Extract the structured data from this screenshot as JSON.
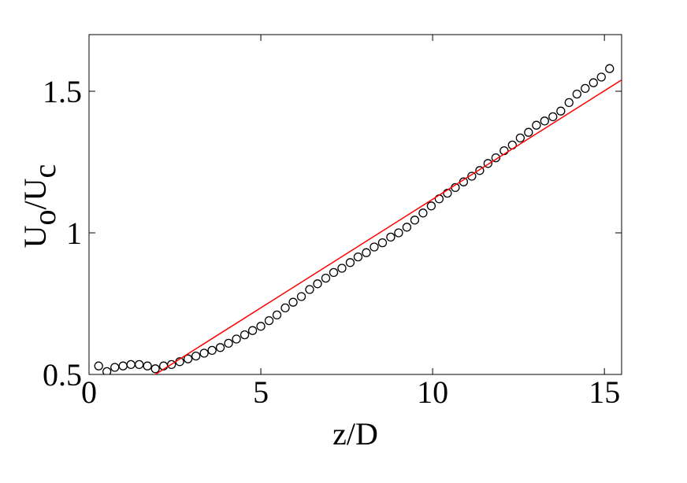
{
  "chart_data": {
    "type": "scatter",
    "xlabel": "z/D",
    "ylabel": [
      "U",
      "o",
      "/U",
      "c"
    ],
    "xlim": [
      0,
      15.5
    ],
    "ylim": [
      0.5,
      1.7
    ],
    "xticks": [
      0,
      5,
      10,
      15
    ],
    "yticks": [
      0.5,
      1,
      1.5
    ],
    "series": [
      {
        "type": "scatter",
        "color": "#000000",
        "x": [
          0.28,
          0.52,
          0.75,
          0.99,
          1.22,
          1.46,
          1.7,
          1.93,
          2.17,
          2.4,
          2.64,
          2.88,
          3.11,
          3.35,
          3.58,
          3.82,
          4.06,
          4.29,
          4.53,
          4.76,
          5.0,
          5.24,
          5.47,
          5.71,
          5.94,
          6.18,
          6.42,
          6.65,
          6.89,
          7.12,
          7.36,
          7.6,
          7.83,
          8.07,
          8.3,
          8.54,
          8.78,
          9.01,
          9.25,
          9.48,
          9.72,
          9.96,
          10.19,
          10.43,
          10.66,
          10.9,
          11.14,
          11.37,
          11.61,
          11.84,
          12.08,
          12.32,
          12.55,
          12.79,
          13.02,
          13.26,
          13.5,
          13.73,
          13.97,
          14.2,
          14.44,
          14.68,
          14.91,
          15.15
        ],
        "values": [
          0.53,
          0.51,
          0.525,
          0.53,
          0.535,
          0.535,
          0.53,
          0.52,
          0.53,
          0.535,
          0.545,
          0.555,
          0.565,
          0.575,
          0.585,
          0.595,
          0.61,
          0.625,
          0.64,
          0.655,
          0.67,
          0.69,
          0.71,
          0.735,
          0.755,
          0.775,
          0.8,
          0.82,
          0.84,
          0.86,
          0.875,
          0.895,
          0.915,
          0.93,
          0.95,
          0.965,
          0.985,
          1.0,
          1.02,
          1.045,
          1.07,
          1.095,
          1.12,
          1.14,
          1.16,
          1.18,
          1.2,
          1.22,
          1.245,
          1.265,
          1.29,
          1.31,
          1.335,
          1.355,
          1.38,
          1.395,
          1.41,
          1.43,
          1.46,
          1.49,
          1.51,
          1.53,
          1.55,
          1.58
        ]
      },
      {
        "type": "line",
        "color": "#ff0000",
        "x": [
          1.93,
          15.5
        ],
        "values": [
          0.5,
          1.54
        ]
      }
    ]
  }
}
